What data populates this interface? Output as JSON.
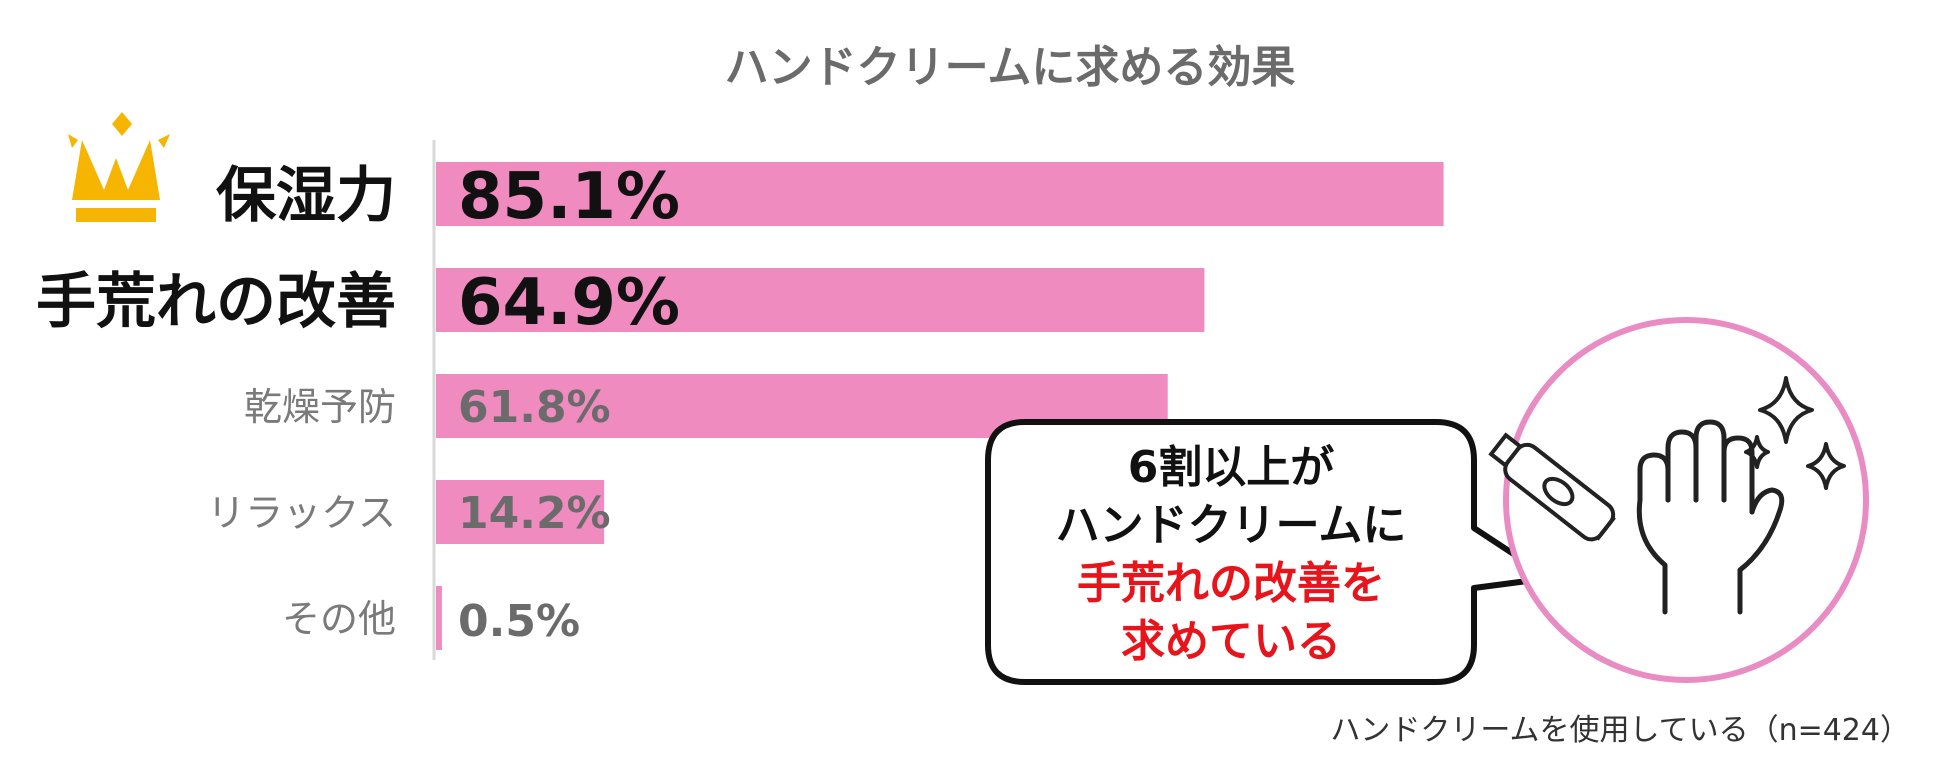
{
  "chart_data": {
    "type": "bar",
    "orientation": "horizontal",
    "title": "ハンドクリームに求める効果",
    "categories": [
      "保湿力",
      "手荒れの改善",
      "乾燥予防",
      "リラックス",
      "その他"
    ],
    "values": [
      85.1,
      64.9,
      61.8,
      14.2,
      0.5
    ],
    "value_labels": [
      "85.1%",
      "64.9%",
      "61.8%",
      "14.2%",
      "0.5%"
    ],
    "xlim": [
      0,
      100
    ],
    "grid": false,
    "bar_color": "#f08bc0",
    "highlight_top": 2
  },
  "callout": {
    "lines": [
      {
        "text": "6割以上が",
        "color": "#111111"
      },
      {
        "text": "ハンドクリームに",
        "color": "#111111"
      },
      {
        "text": "手荒れの改善を",
        "color": "#e8141b"
      },
      {
        "text": "求めている",
        "color": "#e8141b"
      }
    ]
  },
  "illustration": {
    "icons": [
      "hand-icon",
      "cream-tube-icon",
      "sparkle-icon"
    ],
    "circle_color": "#e88cc3"
  },
  "crown": {
    "icon": "crown-icon",
    "color": "#f5b500"
  },
  "footnote": "ハンドクリームを使用している（n=424）"
}
